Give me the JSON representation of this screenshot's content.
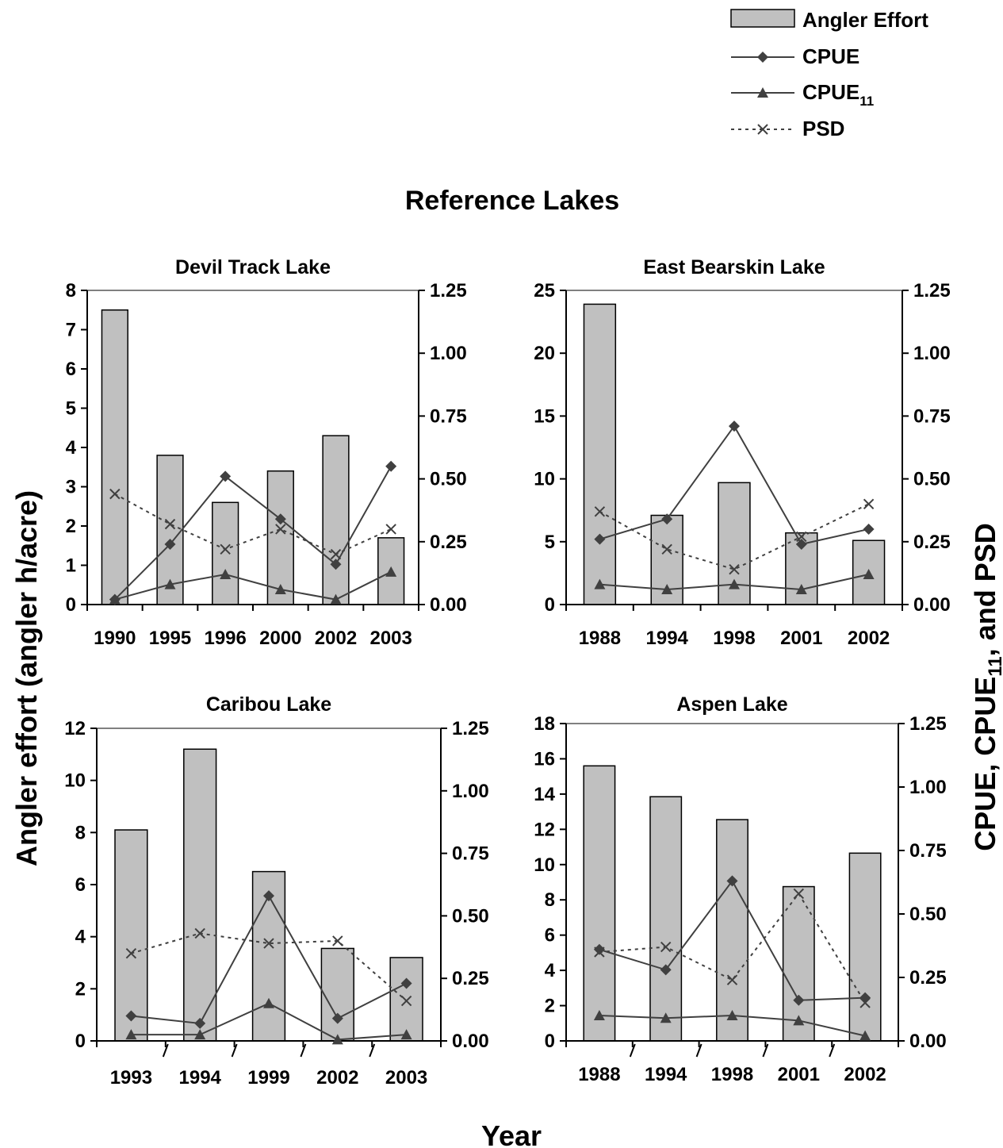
{
  "title": "Reference Lakes",
  "left_axis_label": "Angler effort (angler h/acre)",
  "right_axis_label": {
    "main": "CPUE, CPUE",
    "sub": "11",
    "tail": ", and PSD"
  },
  "x_axis_label": "Year",
  "legend": [
    {
      "key": "effort",
      "label": "Angler Effort"
    },
    {
      "key": "cpue",
      "label": "CPUE"
    },
    {
      "key": "cpue11",
      "label": "CPUE",
      "sub": "11"
    },
    {
      "key": "psd",
      "label": "PSD"
    }
  ],
  "colors": {
    "bar_fill": "#c0c0c0",
    "line": "#404040",
    "axis": "#000000"
  },
  "chart_data": [
    {
      "type": "bar",
      "title": "Devil Track Lake",
      "categories": [
        "1990",
        "1995",
        "1996",
        "2000",
        "2002",
        "2003"
      ],
      "left_ylim": [
        0,
        8
      ],
      "left_ticks": [
        "0",
        "1",
        "2",
        "3",
        "4",
        "5",
        "6",
        "7",
        "8"
      ],
      "right_ylim": [
        0,
        1.25
      ],
      "right_ticks": [
        "0.00",
        "0.25",
        "0.50",
        "0.75",
        "1.00",
        "1.25"
      ],
      "series": [
        {
          "name": "Angler Effort",
          "axis": "left",
          "values": [
            7.5,
            3.8,
            2.6,
            3.4,
            4.3,
            1.7
          ]
        },
        {
          "name": "CPUE",
          "axis": "right",
          "values": [
            0.02,
            0.24,
            0.51,
            0.34,
            0.16,
            0.55
          ]
        },
        {
          "name": "CPUE11",
          "axis": "right",
          "values": [
            0.02,
            0.08,
            0.12,
            0.06,
            0.02,
            0.13
          ]
        },
        {
          "name": "PSD",
          "axis": "right",
          "values": [
            0.44,
            0.32,
            0.22,
            0.3,
            0.2,
            0.3
          ]
        }
      ]
    },
    {
      "type": "bar",
      "title": "East Bearskin Lake",
      "categories": [
        "1988",
        "1994",
        "1998",
        "2001",
        "2002"
      ],
      "left_ylim": [
        0,
        25
      ],
      "left_ticks": [
        "0",
        "5",
        "10",
        "15",
        "20",
        "25"
      ],
      "right_ylim": [
        0,
        1.25
      ],
      "right_ticks": [
        "0.00",
        "0.25",
        "0.50",
        "0.75",
        "1.00",
        "1.25"
      ],
      "series": [
        {
          "name": "Angler Effort",
          "axis": "left",
          "values": [
            23.9,
            7.1,
            9.7,
            5.7,
            5.1
          ]
        },
        {
          "name": "CPUE",
          "axis": "right",
          "values": [
            0.26,
            0.34,
            0.71,
            0.24,
            0.3
          ]
        },
        {
          "name": "CPUE11",
          "axis": "right",
          "values": [
            0.08,
            0.06,
            0.08,
            0.06,
            0.12
          ]
        },
        {
          "name": "PSD",
          "axis": "right",
          "values": [
            0.37,
            0.22,
            0.14,
            0.27,
            0.4
          ]
        }
      ]
    },
    {
      "type": "bar",
      "title": "Caribou Lake",
      "categories": [
        "1993",
        "1994",
        "1999",
        "2002",
        "2003"
      ],
      "left_ylim": [
        0,
        12
      ],
      "left_ticks": [
        "0",
        "2",
        "4",
        "6",
        "8",
        "10",
        "12"
      ],
      "right_ylim": [
        0,
        1.25
      ],
      "right_ticks": [
        "0.00",
        "0.25",
        "0.50",
        "0.75",
        "1.00",
        "1.25"
      ],
      "series": [
        {
          "name": "Angler Effort",
          "axis": "left",
          "values": [
            8.1,
            11.2,
            6.5,
            3.55,
            3.2
          ]
        },
        {
          "name": "CPUE",
          "axis": "right",
          "values": [
            0.1,
            0.07,
            0.58,
            0.09,
            0.23
          ]
        },
        {
          "name": "CPUE11",
          "axis": "right",
          "values": [
            0.025,
            0.025,
            0.15,
            0.005,
            0.025
          ]
        },
        {
          "name": "PSD",
          "axis": "right",
          "values": [
            0.35,
            0.43,
            0.39,
            0.4,
            0.16
          ]
        }
      ]
    },
    {
      "type": "bar",
      "title": "Aspen Lake",
      "categories": [
        "1988",
        "1994",
        "1998",
        "2001",
        "2002"
      ],
      "left_ylim": [
        0,
        18
      ],
      "left_ticks": [
        "0",
        "2",
        "4",
        "6",
        "8",
        "10",
        "12",
        "14",
        "16",
        "18"
      ],
      "right_ylim": [
        0,
        1.25
      ],
      "right_ticks": [
        "0.00",
        "0.25",
        "0.50",
        "0.75",
        "1.00",
        "1.25"
      ],
      "series": [
        {
          "name": "Angler Effort",
          "axis": "left",
          "values": [
            15.6,
            13.85,
            12.55,
            8.75,
            10.65
          ]
        },
        {
          "name": "CPUE",
          "axis": "right",
          "values": [
            0.36,
            0.28,
            0.63,
            0.16,
            0.17
          ]
        },
        {
          "name": "CPUE11",
          "axis": "right",
          "values": [
            0.1,
            0.09,
            0.1,
            0.08,
            0.02
          ]
        },
        {
          "name": "PSD",
          "axis": "right",
          "values": [
            0.35,
            0.37,
            0.24,
            0.58,
            0.15
          ]
        }
      ]
    }
  ]
}
